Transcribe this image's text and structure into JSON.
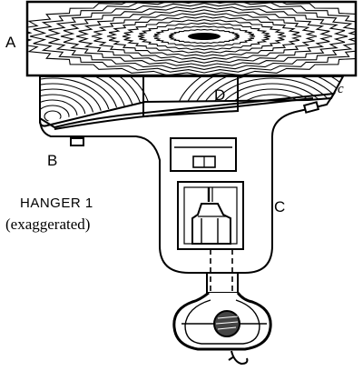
{
  "labels": {
    "a": "A",
    "b": "B",
    "c_upper": "c",
    "c_lower": "C",
    "d": "D"
  },
  "caption": {
    "line1": "HANGER 1",
    "line2": "(exaggerated)"
  }
}
